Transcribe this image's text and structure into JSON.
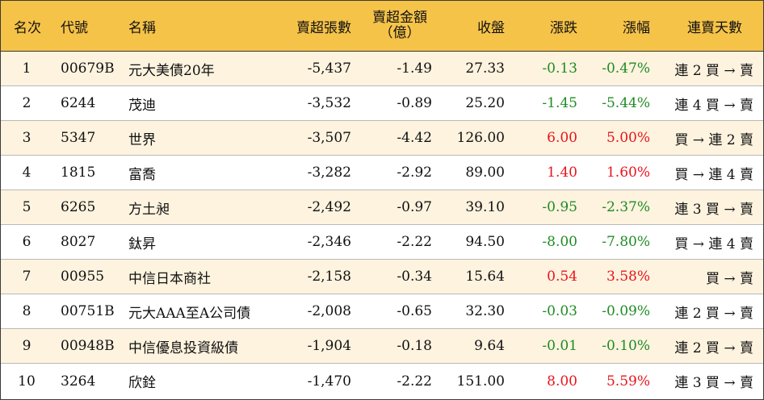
{
  "headers": {
    "rank": "名次",
    "code": "代號",
    "name": "名稱",
    "net_sell_lots": "賣超張數",
    "net_sell_amount_line1": "賣超金額",
    "net_sell_amount_line2": "（億）",
    "close": "收盤",
    "change": "漲跌",
    "change_pct": "漲幅",
    "streak": "連賣天數"
  },
  "colors": {
    "header_bg": "#f6c349",
    "row_odd_bg": "#fdf3df",
    "up": "#e8141c",
    "down": "#1f8b24"
  },
  "rows": [
    {
      "rank": "1",
      "code": "00679B",
      "name": "元大美債20年",
      "net_sell_lots": "-5,437",
      "net_sell_amount": "-1.49",
      "close": "27.33",
      "change": "-0.13",
      "change_pct": "-0.47%",
      "streak": "連 2 買 → 賣",
      "direction": "down"
    },
    {
      "rank": "2",
      "code": "6244",
      "name": "茂迪",
      "net_sell_lots": "-3,532",
      "net_sell_amount": "-0.89",
      "close": "25.20",
      "change": "-1.45",
      "change_pct": "-5.44%",
      "streak": "連 4 買 → 賣",
      "direction": "down"
    },
    {
      "rank": "3",
      "code": "5347",
      "name": "世界",
      "net_sell_lots": "-3,507",
      "net_sell_amount": "-4.42",
      "close": "126.00",
      "change": "6.00",
      "change_pct": "5.00%",
      "streak": "買 → 連 2 賣",
      "direction": "up"
    },
    {
      "rank": "4",
      "code": "1815",
      "name": "富喬",
      "net_sell_lots": "-3,282",
      "net_sell_amount": "-2.92",
      "close": "89.00",
      "change": "1.40",
      "change_pct": "1.60%",
      "streak": "買 → 連 4 賣",
      "direction": "up"
    },
    {
      "rank": "5",
      "code": "6265",
      "name": "方土昶",
      "net_sell_lots": "-2,492",
      "net_sell_amount": "-0.97",
      "close": "39.10",
      "change": "-0.95",
      "change_pct": "-2.37%",
      "streak": "連 3 買 → 賣",
      "direction": "down"
    },
    {
      "rank": "6",
      "code": "8027",
      "name": "鈦昇",
      "net_sell_lots": "-2,346",
      "net_sell_amount": "-2.22",
      "close": "94.50",
      "change": "-8.00",
      "change_pct": "-7.80%",
      "streak": "買 → 連 4 賣",
      "direction": "down"
    },
    {
      "rank": "7",
      "code": "00955",
      "name": "中信日本商社",
      "net_sell_lots": "-2,158",
      "net_sell_amount": "-0.34",
      "close": "15.64",
      "change": "0.54",
      "change_pct": "3.58%",
      "streak": "買 → 賣",
      "direction": "up"
    },
    {
      "rank": "8",
      "code": "00751B",
      "name": "元大AAA至A公司債",
      "net_sell_lots": "-2,008",
      "net_sell_amount": "-0.65",
      "close": "32.30",
      "change": "-0.03",
      "change_pct": "-0.09%",
      "streak": "連 2 買 → 賣",
      "direction": "down"
    },
    {
      "rank": "9",
      "code": "00948B",
      "name": "中信優息投資級債",
      "net_sell_lots": "-1,904",
      "net_sell_amount": "-0.18",
      "close": "9.64",
      "change": "-0.01",
      "change_pct": "-0.10%",
      "streak": "連 2 買 → 賣",
      "direction": "down"
    },
    {
      "rank": "10",
      "code": "3264",
      "name": "欣銓",
      "net_sell_lots": "-1,470",
      "net_sell_amount": "-2.22",
      "close": "151.00",
      "change": "8.00",
      "change_pct": "5.59%",
      "streak": "連 3 買 → 賣",
      "direction": "up"
    }
  ]
}
